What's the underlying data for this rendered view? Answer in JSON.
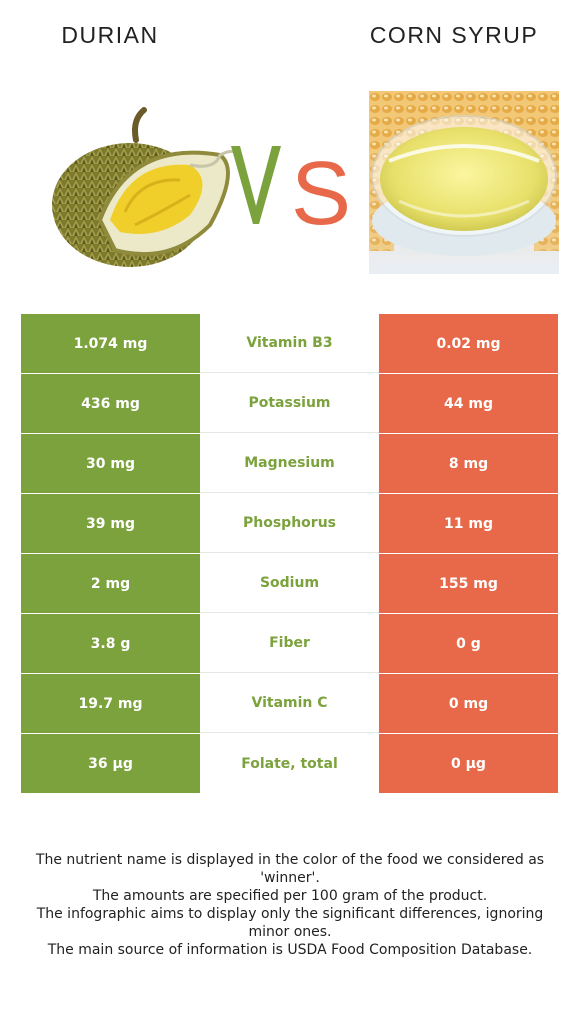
{
  "header": {
    "left_title": "DURIAN",
    "right_title": "CORN SYRUP",
    "vs_text": "VS"
  },
  "colors": {
    "left_winner": "#7ba23c",
    "right_winner": "#e8694a"
  },
  "images": {
    "left_icon": "durian-fruit-image",
    "right_icon": "corn-syrup-bowl-image"
  },
  "rows": [
    {
      "left": "1.074 mg",
      "nutrient": "Vitamin B3",
      "right": "0.02 mg",
      "winner": "left"
    },
    {
      "left": "436 mg",
      "nutrient": "Potassium",
      "right": "44 mg",
      "winner": "left"
    },
    {
      "left": "30 mg",
      "nutrient": "Magnesium",
      "right": "8 mg",
      "winner": "left"
    },
    {
      "left": "39 mg",
      "nutrient": "Phosphorus",
      "right": "11 mg",
      "winner": "left"
    },
    {
      "left": "2 mg",
      "nutrient": "Sodium",
      "right": "155 mg",
      "winner": "left"
    },
    {
      "left": "3.8 g",
      "nutrient": "Fiber",
      "right": "0 g",
      "winner": "left"
    },
    {
      "left": "19.7 mg",
      "nutrient": "Vitamin C",
      "right": "0 mg",
      "winner": "left"
    },
    {
      "left": "36 µg",
      "nutrient": "Folate, total",
      "right": "0 µg",
      "winner": "left"
    }
  ],
  "notes": [
    "The nutrient name is displayed in the color of the food we considered as 'winner'.",
    "The amounts are specified per 100 gram of the product.",
    "The infographic aims to display only the significant differences, ignoring minor ones.",
    "The main source of information is USDA Food Composition Database."
  ]
}
